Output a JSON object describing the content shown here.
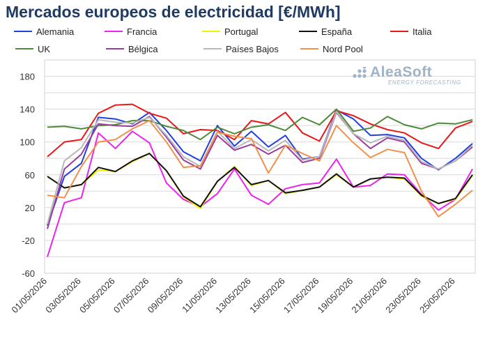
{
  "title": "Mercados europeos de electricidad [€/MWh]",
  "logo": {
    "name": "AleaSoft",
    "tagline": "ENERGY FORECASTING",
    "color": "#9fb3c8"
  },
  "chart_data": {
    "type": "line",
    "title": "Mercados europeos de electricidad [€/MWh]",
    "xlabel": "",
    "ylabel": "",
    "ylim": [
      -60,
      200
    ],
    "yticks": [
      -60,
      -20,
      20,
      60,
      100,
      140,
      180
    ],
    "grid": true,
    "legend_position": "top",
    "x": [
      "01/05/2026",
      "02/05/2026",
      "03/05/2026",
      "04/05/2026",
      "05/05/2026",
      "06/05/2026",
      "07/05/2026",
      "08/05/2026",
      "09/05/2026",
      "10/05/2026",
      "11/05/2026",
      "12/05/2026",
      "13/05/2026",
      "14/05/2026",
      "15/05/2026",
      "16/05/2026",
      "17/05/2026",
      "18/05/2026",
      "19/05/2026",
      "20/05/2026",
      "21/05/2026",
      "22/05/2026",
      "23/05/2026",
      "24/05/2026",
      "25/05/2026",
      "26/05/2026"
    ],
    "xtick_labels": [
      "01/05/2026",
      "03/05/2026",
      "05/05/2026",
      "07/05/2026",
      "09/05/2026",
      "11/05/2026",
      "13/05/2026",
      "15/05/2026",
      "17/05/2026",
      "19/05/2026",
      "21/05/2026",
      "23/05/2026",
      "25/05/2026"
    ],
    "series": [
      {
        "name": "Alemania",
        "color": "#1f3fe0",
        "values": [
          -2,
          58,
          74,
          130,
          128,
          122,
          136,
          114,
          88,
          77,
          120,
          95,
          113,
          94,
          108,
          79,
          82,
          139,
          128,
          108,
          109,
          105,
          80,
          66,
          80,
          98
        ]
      },
      {
        "name": "Francia",
        "color": "#ee22ee",
        "values": [
          -40,
          26,
          32,
          111,
          92,
          113,
          99,
          50,
          30,
          21,
          37,
          67,
          35,
          24,
          43,
          48,
          50,
          79,
          45,
          47,
          61,
          60,
          36,
          17,
          30,
          67
        ]
      },
      {
        "name": "Portugal",
        "color": "#f2f200",
        "values": [
          58,
          44,
          48,
          66,
          64,
          76,
          86,
          65,
          33,
          19,
          52,
          70,
          47,
          53,
          37,
          41,
          45,
          60,
          45,
          55,
          57,
          55,
          34,
          25,
          30,
          59
        ]
      },
      {
        "name": "España",
        "color": "#111111",
        "values": [
          58,
          44,
          48,
          69,
          64,
          77,
          86,
          65,
          34,
          21,
          52,
          69,
          48,
          53,
          38,
          41,
          45,
          61,
          45,
          55,
          57,
          56,
          35,
          25,
          31,
          60
        ]
      },
      {
        "name": "Italia",
        "color": "#e81818",
        "values": [
          82,
          100,
          103,
          135,
          145,
          146,
          135,
          129,
          110,
          115,
          114,
          103,
          126,
          122,
          136,
          111,
          101,
          138,
          132,
          122,
          115,
          111,
          99,
          92,
          117,
          125
        ]
      },
      {
        "name": "UK",
        "color": "#4d8a3a",
        "values": [
          118,
          119,
          116,
          120,
          121,
          126,
          126,
          119,
          114,
          103,
          118,
          110,
          118,
          121,
          114,
          130,
          121,
          140,
          113,
          117,
          131,
          121,
          116,
          123,
          122,
          127
        ]
      },
      {
        "name": "Bélgica",
        "color": "#9b3b9b",
        "values": [
          -6,
          67,
          85,
          122,
          120,
          119,
          131,
          106,
          78,
          67,
          108,
          90,
          97,
          85,
          96,
          75,
          80,
          136,
          110,
          92,
          105,
          100,
          74,
          67,
          77,
          94
        ]
      },
      {
        "name": "Países Bajos",
        "color": "#b8b8b8",
        "values": [
          0,
          77,
          93,
          127,
          124,
          123,
          130,
          108,
          82,
          70,
          113,
          92,
          103,
          89,
          102,
          78,
          82,
          137,
          110,
          99,
          107,
          102,
          76,
          67,
          77,
          96
        ]
      },
      {
        "name": "Nord Pool",
        "color": "#f0904a",
        "values": [
          35,
          32,
          70,
          100,
          103,
          116,
          126,
          100,
          69,
          71,
          112,
          107,
          104,
          62,
          96,
          86,
          77,
          120,
          99,
          81,
          91,
          87,
          40,
          9,
          24,
          41
        ]
      }
    ]
  }
}
